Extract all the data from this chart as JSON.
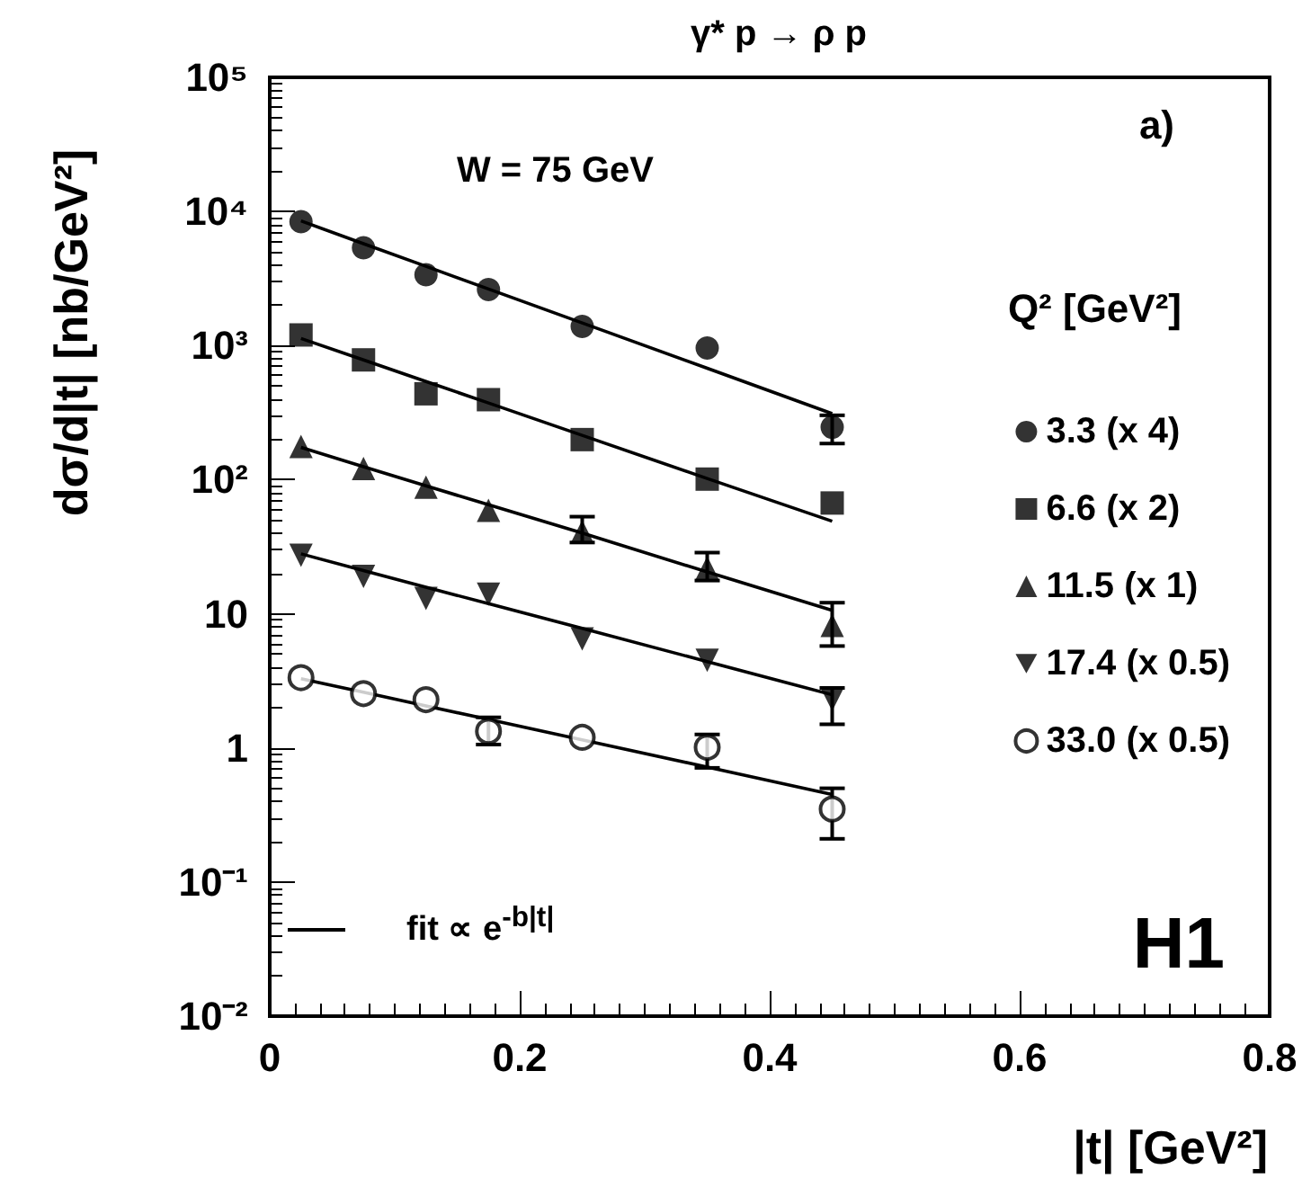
{
  "chart_data": {
    "type": "scatter",
    "title": "γ* p → ρ p",
    "xlabel": "|t| [GeV²]",
    "ylabel": "dσ/d|t| [nb/GeV²]",
    "legend_title": "Q² [GeV²]",
    "annotations": [
      "W = 75 GeV",
      "a)",
      "fit ∝ e$^{-b|t|}$",
      "H1"
    ],
    "x": [
      0.025,
      0.075,
      0.125,
      0.175,
      0.25,
      0.35,
      0.45
    ],
    "series": [
      {
        "name": "3.3 (x 4)",
        "color": "#000000",
        "marker": "circle",
        "values": [
          8400,
          5360,
          3380,
          2620,
          1390,
          960,
          246
        ],
        "errors": [
          null,
          null,
          null,
          null,
          null,
          null,
          [
            186,
            302
          ]
        ]
      },
      {
        "name": "6.6 (x 2)",
        "color": "#000000",
        "marker": "square",
        "values": [
          1200,
          782,
          437,
          395,
          199,
          101,
          67
        ]
      },
      {
        "name": "11.5 (x 1)",
        "color": "#000000",
        "marker": "triangle",
        "values": [
          177,
          121,
          88,
          59,
          41,
          22,
          8.2
        ],
        "errors": [
          null,
          null,
          null,
          null,
          [
            34,
            53
          ],
          [
            17.7,
            28.6
          ],
          [
            5.75,
            12.1
          ]
        ]
      },
      {
        "name": "17.4 (x 0.5)",
        "color": "#000000",
        "marker": "triangle-down",
        "values": [
          27.3,
          19,
          13,
          14,
          6.5,
          4.5,
          2.3
        ],
        "errors": [
          null,
          null,
          null,
          null,
          null,
          null,
          [
            1.5,
            2.8
          ]
        ]
      },
      {
        "name": "33.0 (x 0.5)",
        "color": "#000000",
        "marker": "circle-open",
        "values": [
          3.34,
          2.54,
          2.29,
          1.33,
          1.2,
          1.01,
          0.35
        ],
        "errors": [
          null,
          null,
          null,
          [
            1.06,
            1.69
          ],
          null,
          [
            0.71,
            1.26
          ],
          [
            0.21,
            0.5
          ]
        ]
      },
      {
        "type": "line",
        "color": "#000000",
        "marker": "none",
        "values": [
          8500,
          5750,
          3900,
          2640,
          1475,
          678,
          311
        ]
      },
      {
        "type": "line",
        "color": "#000000",
        "marker": "none",
        "values": [
          1130,
          781,
          540,
          373,
          214,
          102,
          49
        ]
      },
      {
        "type": "line",
        "color": "#000000",
        "marker": "none",
        "values": [
          174,
          125,
          90,
          65,
          40,
          20.5,
          10.6
        ]
      },
      {
        "type": "line",
        "color": "#000000",
        "marker": "none",
        "values": [
          28,
          21,
          15.8,
          11.9,
          7.8,
          4.4,
          2.49
        ]
      },
      {
        "type": "line",
        "color": "#000000",
        "marker": "none",
        "values": [
          3.28,
          2.6,
          2.06,
          1.63,
          1.15,
          0.72,
          0.45
        ]
      }
    ],
    "xlim": [
      0,
      0.8
    ],
    "xticks": [
      0,
      0.2,
      0.4,
      0.6,
      0.8
    ],
    "ylim": [
      0.01,
      100000
    ],
    "log": "y",
    "yticks": [
      {
        "value": 0.01,
        "label": "10⁻²"
      },
      {
        "value": 0.1,
        "label": "10⁻¹"
      },
      1,
      10,
      {
        "value": 100,
        "label": "10²"
      },
      {
        "value": 1000,
        "label": "10³"
      },
      {
        "value": 10000,
        "label": "10⁴"
      },
      {
        "value": 100000,
        "label": "10⁵"
      }
    ],
    "grid": false,
    "legend": "right"
  }
}
